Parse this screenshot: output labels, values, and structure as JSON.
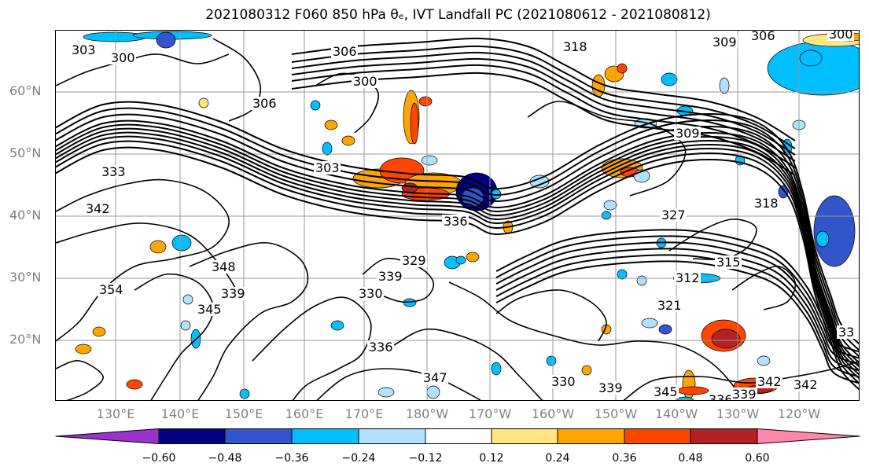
{
  "title": "2021080312 F060 850 hPa θₑ, IVT Landfall PC (2021080612 - 2021080812)",
  "map": {
    "lat_labels": [
      "60°N",
      "50°N",
      "40°N",
      "30°N",
      "20°N"
    ],
    "lon_labels": [
      "130°E",
      "140°E",
      "150°E",
      "160°E",
      "170°E",
      "180°W",
      "170°W",
      "160°W",
      "150°W",
      "140°W",
      "130°W",
      "120°W"
    ],
    "contour_labels": [
      "303",
      "300",
      "306",
      "300",
      "318",
      "309",
      "306",
      "300",
      "306",
      "303",
      "333",
      "342",
      "309",
      "327",
      "318",
      "336",
      "329",
      "339",
      "348",
      "354",
      "345",
      "339",
      "315",
      "312",
      "321",
      "330",
      "336",
      "347",
      "330",
      "339",
      "342",
      "345",
      "336",
      "339",
      "342",
      "33"
    ]
  },
  "colorbar": {
    "ticks": [
      "−0.60",
      "−0.48",
      "−0.36",
      "−0.24",
      "−0.12",
      "0.12",
      "0.24",
      "0.36",
      "0.48",
      "0.60"
    ],
    "colors": [
      "#9933cc",
      "#000080",
      "#3355cc",
      "#00bfff",
      "#b0e2ff",
      "#ffffff",
      "#ffe680",
      "#ffa500",
      "#ff4500",
      "#b22222",
      "#ff88aa"
    ]
  }
}
